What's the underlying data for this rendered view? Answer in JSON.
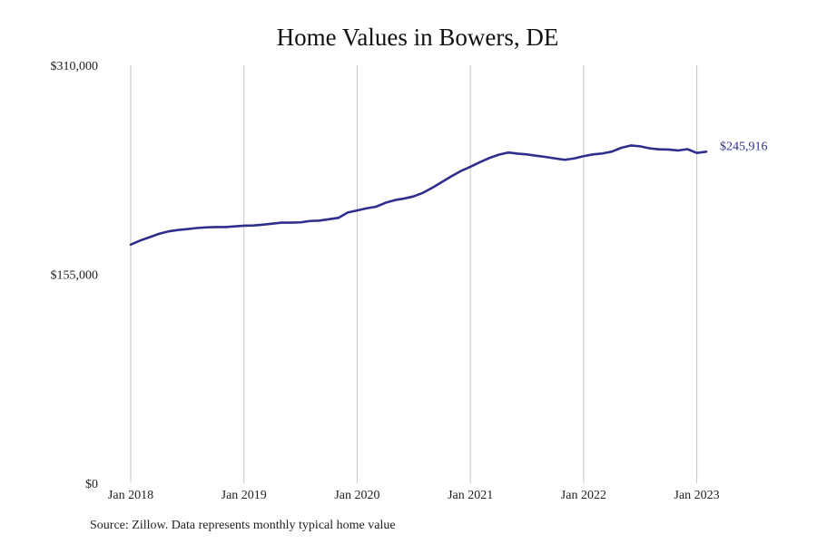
{
  "chart_data": {
    "type": "line",
    "title": "Home Values in Bowers, DE",
    "source": "Source: Zillow. Data represents monthly typical home value",
    "xlabel": "",
    "ylabel": "",
    "ylim": [
      0,
      310000
    ],
    "yticks": [
      {
        "value": 0,
        "label": "$0"
      },
      {
        "value": 155000,
        "label": "$155,000"
      },
      {
        "value": 310000,
        "label": "$310,000"
      }
    ],
    "xlim": [
      "2018-01",
      "2023-02"
    ],
    "xticks": [
      {
        "value": "2018-01",
        "label": "Jan 2018"
      },
      {
        "value": "2019-01",
        "label": "Jan 2019"
      },
      {
        "value": "2020-01",
        "label": "Jan 2020"
      },
      {
        "value": "2021-01",
        "label": "Jan 2021"
      },
      {
        "value": "2022-01",
        "label": "Jan 2022"
      },
      {
        "value": "2023-01",
        "label": "Jan 2023"
      }
    ],
    "grid": "vertical",
    "line_color": "#2e2e8c",
    "end_label": "$245,916",
    "series": [
      {
        "x": [
          "2018-01",
          "2018-02",
          "2018-03",
          "2018-04",
          "2018-05",
          "2018-06",
          "2018-07",
          "2018-08",
          "2018-09",
          "2018-10",
          "2018-11",
          "2018-12",
          "2019-01",
          "2019-02",
          "2019-03",
          "2019-04",
          "2019-05",
          "2019-06",
          "2019-07",
          "2019-08",
          "2019-09",
          "2019-10",
          "2019-11",
          "2019-12",
          "2020-01",
          "2020-02",
          "2020-03",
          "2020-04",
          "2020-05",
          "2020-06",
          "2020-07",
          "2020-08",
          "2020-09",
          "2020-10",
          "2020-11",
          "2020-12",
          "2021-01",
          "2021-02",
          "2021-03",
          "2021-04",
          "2021-05",
          "2021-06",
          "2021-07",
          "2021-08",
          "2021-09",
          "2021-10",
          "2021-11",
          "2021-12",
          "2022-01",
          "2022-02",
          "2022-03",
          "2022-04",
          "2022-05",
          "2022-06",
          "2022-07",
          "2022-08",
          "2022-09",
          "2022-10",
          "2022-11",
          "2022-12",
          "2023-01",
          "2023-02"
        ],
        "values": [
          177000,
          180000,
          182500,
          185000,
          186800,
          187800,
          188500,
          189300,
          189800,
          190000,
          190000,
          190500,
          191000,
          191200,
          191800,
          192500,
          193300,
          193300,
          193500,
          194500,
          194800,
          195800,
          196800,
          200800,
          202300,
          203900,
          205100,
          208000,
          210000,
          211200,
          212800,
          215500,
          219300,
          223500,
          227700,
          231600,
          234700,
          238100,
          241200,
          243700,
          245300,
          244500,
          243900,
          242900,
          242000,
          240900,
          239900,
          240900,
          242600,
          243900,
          244600,
          246000,
          248800,
          250500,
          249900,
          248400,
          247700,
          247500,
          246800,
          247800,
          245000,
          245916
        ]
      }
    ]
  }
}
